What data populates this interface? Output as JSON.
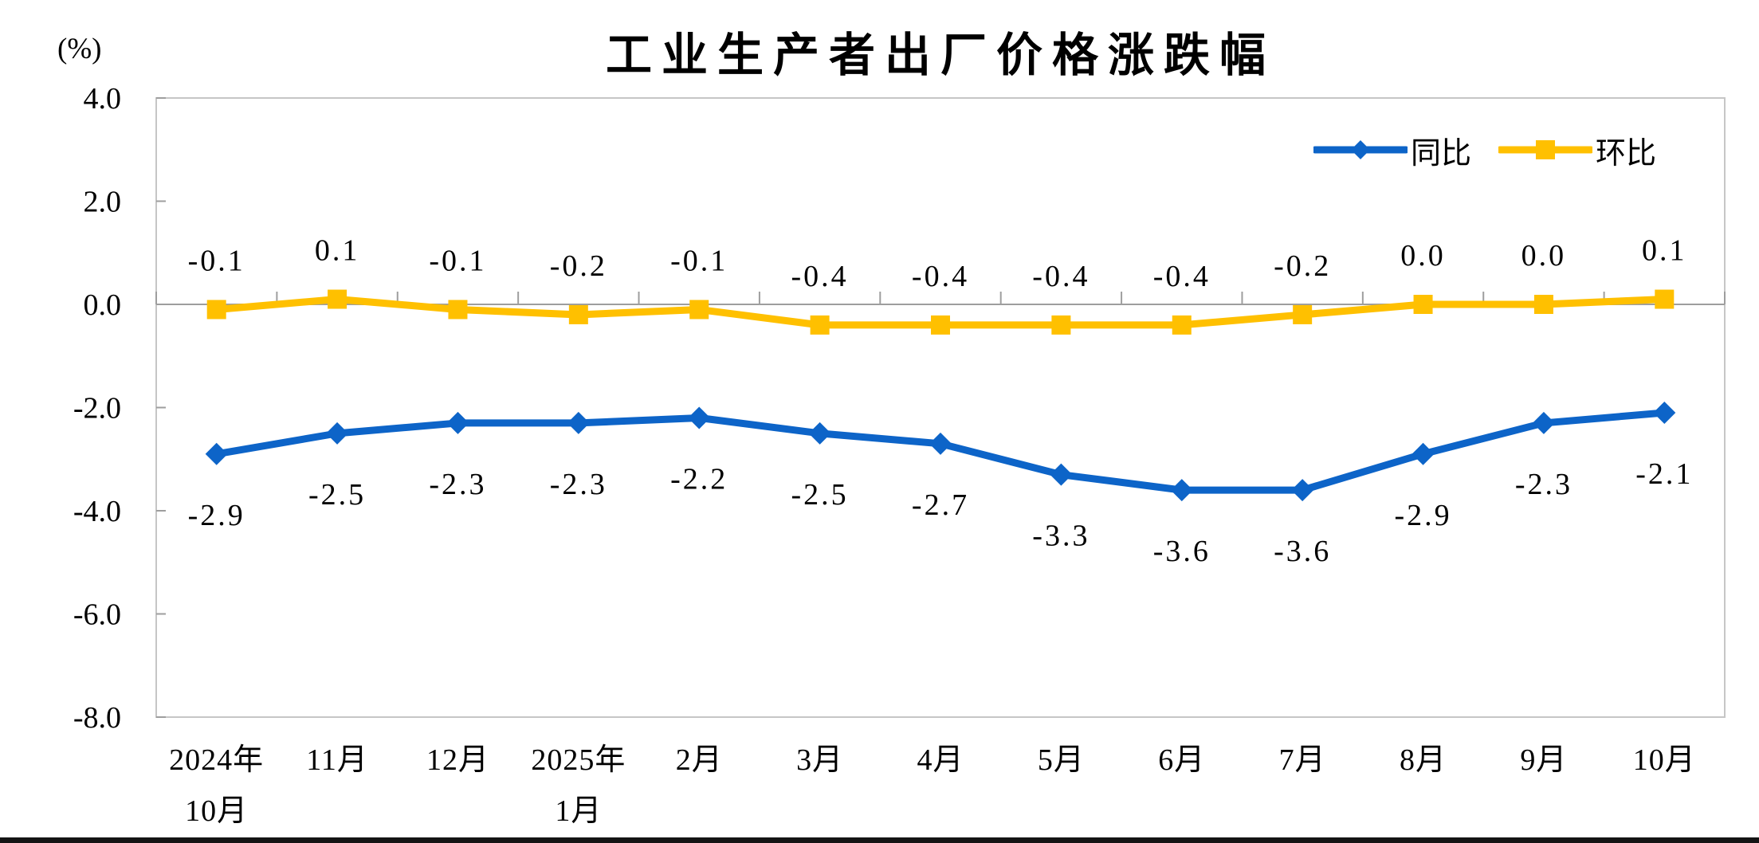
{
  "chart_data": {
    "type": "line",
    "title": "工业生产者出厂价格涨跌幅",
    "unit_label": "(%)",
    "categories": [
      "2024年\n10月",
      "11月",
      "12月",
      "2025年\n1月",
      "2月",
      "3月",
      "4月",
      "5月",
      "6月",
      "7月",
      "8月",
      "9月",
      "10月"
    ],
    "y_ticks": [
      4.0,
      2.0,
      0.0,
      -2.0,
      -4.0,
      -6.0,
      -8.0
    ],
    "ylim": [
      -8.0,
      4.0
    ],
    "grid": false,
    "legend_position": "top-right",
    "axis_colors": {
      "border": "#c6c6c6",
      "zero_line": "#9e9e9e",
      "tick": "#9e9e9e"
    },
    "series": [
      {
        "id": "yoy",
        "name": "同比",
        "color": "#0d64c8",
        "marker": "diamond",
        "label_position": "below",
        "values": [
          -2.9,
          -2.5,
          -2.3,
          -2.3,
          -2.2,
          -2.5,
          -2.7,
          -3.3,
          -3.6,
          -3.6,
          -2.9,
          -2.3,
          -2.1
        ],
        "labels": [
          "-2.9",
          "-2.5",
          "-2.3",
          "-2.3",
          "-2.2",
          "-2.5",
          "-2.7",
          "-3.3",
          "-3.6",
          "-3.6",
          "-2.9",
          "-2.3",
          "-2.1"
        ]
      },
      {
        "id": "mom",
        "name": "环比",
        "color": "#ffc000",
        "marker": "square",
        "label_position": "above",
        "values": [
          -0.1,
          0.1,
          -0.1,
          -0.2,
          -0.1,
          -0.4,
          -0.4,
          -0.4,
          -0.4,
          -0.2,
          0.0,
          0.0,
          0.1
        ],
        "labels": [
          "-0.1",
          "0.1",
          "-0.1",
          "-0.2",
          "-0.1",
          "-0.4",
          "-0.4",
          "-0.4",
          "-0.4",
          "-0.2",
          "0.0",
          "0.0",
          "0.1"
        ]
      }
    ]
  }
}
